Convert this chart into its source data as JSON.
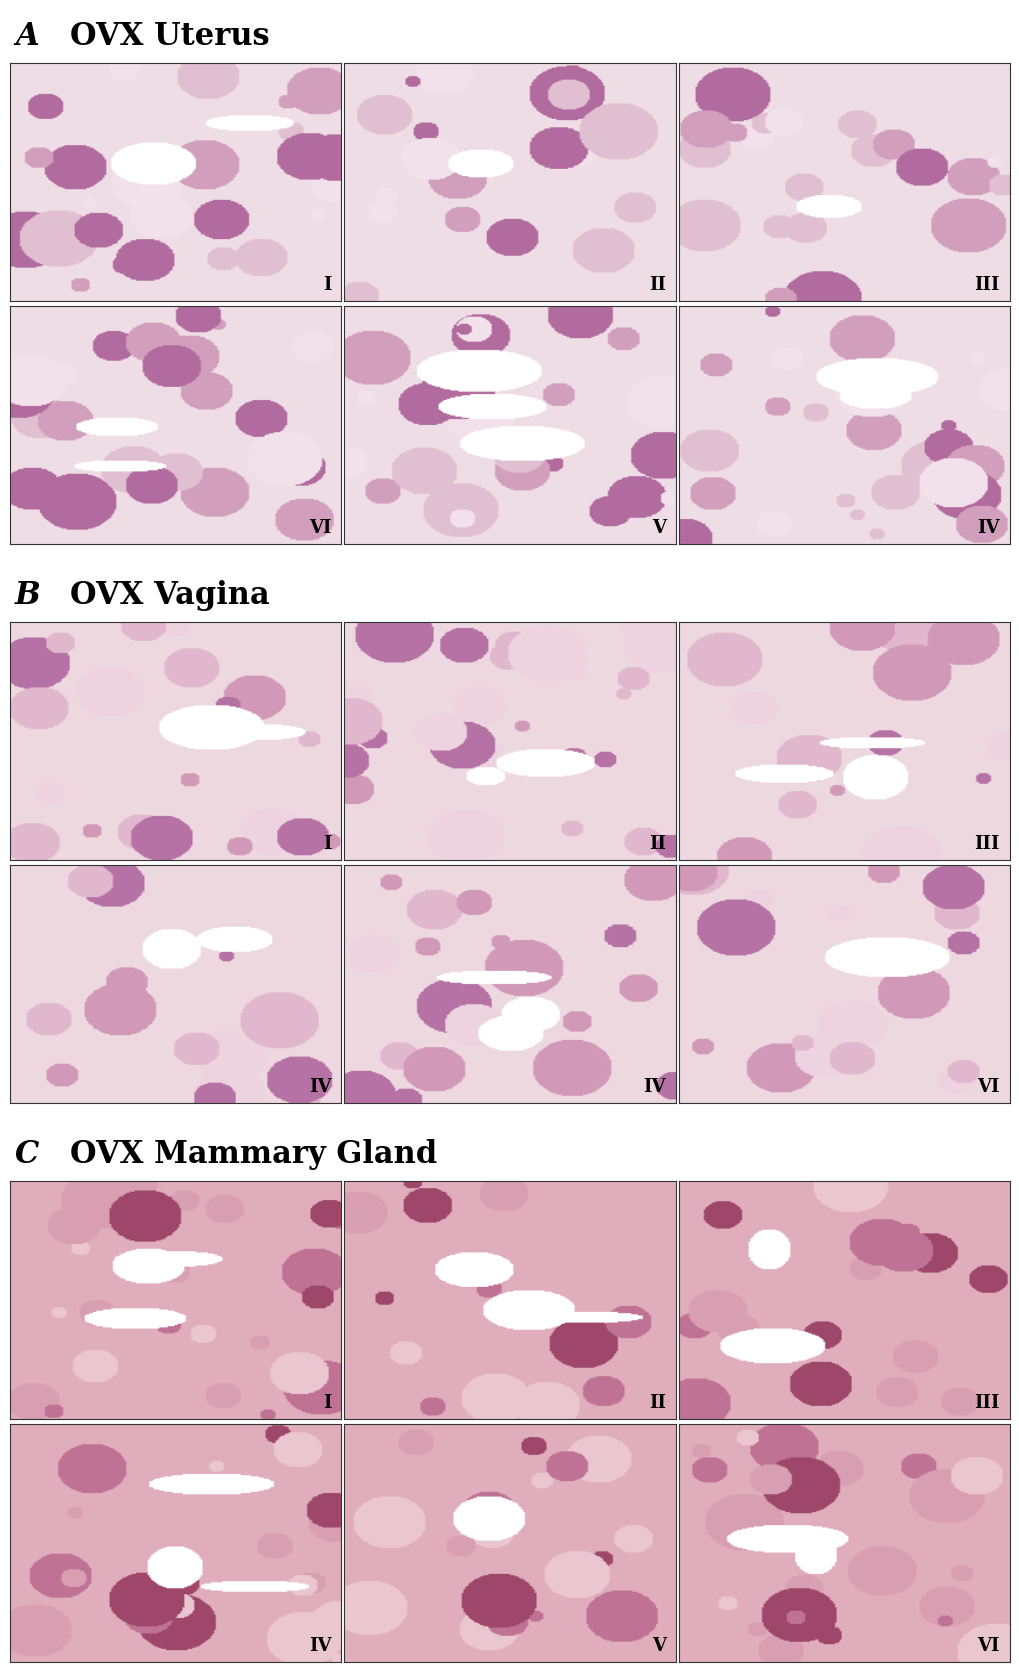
{
  "sections": [
    {
      "label": "A",
      "title": "OVX Uterus",
      "images": [
        {
          "row": 0,
          "col": 0,
          "roman": "I"
        },
        {
          "row": 0,
          "col": 1,
          "roman": "II"
        },
        {
          "row": 0,
          "col": 2,
          "roman": "III"
        },
        {
          "row": 1,
          "col": 0,
          "roman": "VI"
        },
        {
          "row": 1,
          "col": 1,
          "roman": "V"
        },
        {
          "row": 1,
          "col": 2,
          "roman": "IV"
        }
      ]
    },
    {
      "label": "B",
      "title": "OVX Vagina",
      "images": [
        {
          "row": 0,
          "col": 0,
          "roman": "I"
        },
        {
          "row": 0,
          "col": 1,
          "roman": "II"
        },
        {
          "row": 0,
          "col": 2,
          "roman": "III"
        },
        {
          "row": 1,
          "col": 0,
          "roman": "IV"
        },
        {
          "row": 1,
          "col": 1,
          "roman": "IV"
        },
        {
          "row": 1,
          "col": 2,
          "roman": "VI"
        }
      ]
    },
    {
      "label": "C",
      "title": "OVX Mammary Gland",
      "images": [
        {
          "row": 0,
          "col": 0,
          "roman": "I"
        },
        {
          "row": 0,
          "col": 1,
          "roman": "II"
        },
        {
          "row": 0,
          "col": 2,
          "roman": "III"
        },
        {
          "row": 1,
          "col": 0,
          "roman": "IV"
        },
        {
          "row": 1,
          "col": 1,
          "roman": "V"
        },
        {
          "row": 1,
          "col": 2,
          "roman": "VI"
        }
      ]
    }
  ],
  "background_color": "#ffffff",
  "label_fontsize": 22,
  "title_fontsize": 22,
  "roman_fontsize": 13,
  "fig_width": 10.2,
  "fig_height": 16.7,
  "dpi": 100
}
